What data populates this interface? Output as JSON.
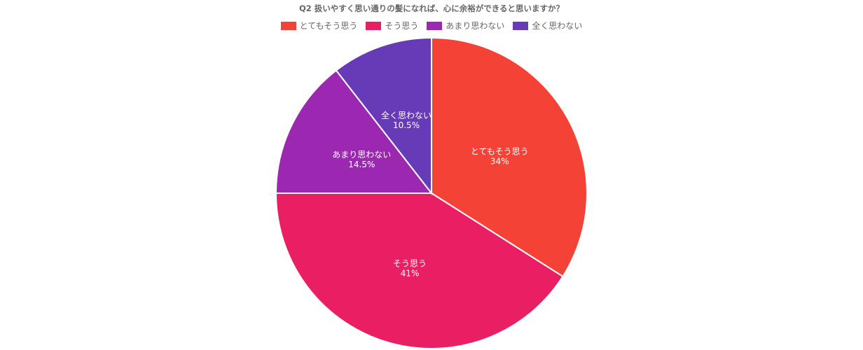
{
  "chart_data": {
    "type": "pie",
    "title": "Q2 扱いやすく思い通りの髪になれば、心に余裕ができると思いますか？",
    "legend_position": "top",
    "categories": [
      "とてもそう思う",
      "そう思う",
      "あまり思わない",
      "全く思わない"
    ],
    "values": [
      34,
      41,
      14.5,
      10.5
    ],
    "value_labels": [
      "34%",
      "41%",
      "14.5%",
      "10.5%"
    ],
    "colors": [
      "#f44336",
      "#e91e63",
      "#9c27b0",
      "#673ab7"
    ]
  }
}
